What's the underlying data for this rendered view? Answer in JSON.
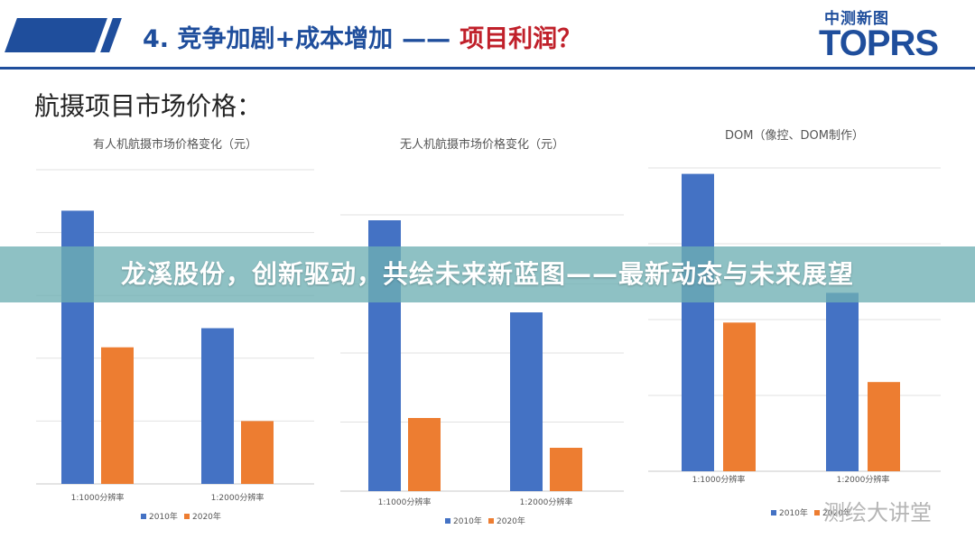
{
  "header": {
    "title_main": "4. 竞争加剧+成本增加",
    "title_dash": "——",
    "title_accent": "项目利润？",
    "logo_cn": "中测新图",
    "logo_en": "TOPRS"
  },
  "section_title": "航摄项目市场价格：",
  "colors": {
    "brand": "#1f4e9c",
    "accent": "#c0202a",
    "series_2010": "#4472c4",
    "series_2020": "#ed7d31",
    "overlay": "#6eafb4"
  },
  "overlay": {
    "text": "龙溪股份，创新驱动，共绘未来新蓝图——最新动态与未来展望"
  },
  "watermark": "测绘大讲堂",
  "chart_data": [
    {
      "type": "bar",
      "title": "有人机航摄市场价格变化（元）",
      "categories": [
        "1:1000分辨率",
        "1:2000分辨率"
      ],
      "series": [
        {
          "name": "2010年",
          "values": [
            100,
            57
          ]
        },
        {
          "name": "2020年",
          "values": [
            50,
            23
          ]
        }
      ],
      "ylim": [
        0,
        115
      ],
      "grid": true,
      "legend": "bottom"
    },
    {
      "type": "bar",
      "title": "无人机航摄市场价格变化（元）",
      "categories": [
        "1:1000分辨率",
        "1:2000分辨率"
      ],
      "series": [
        {
          "name": "2010年",
          "values": [
            100,
            66
          ]
        },
        {
          "name": "2020年",
          "values": [
            27,
            16
          ]
        }
      ],
      "ylim": [
        0,
        102
      ],
      "grid": true,
      "legend": "bottom"
    },
    {
      "type": "bar",
      "title": "DOM（像控、DOM制作）",
      "categories": [
        "1:1000分辨率",
        "1:2000分辨率"
      ],
      "series": [
        {
          "name": "2010年",
          "values": [
            100,
            60
          ]
        },
        {
          "name": "2020年",
          "values": [
            50,
            30
          ]
        }
      ],
      "ylim": [
        0,
        102
      ],
      "grid": true,
      "legend": "bottom"
    }
  ]
}
